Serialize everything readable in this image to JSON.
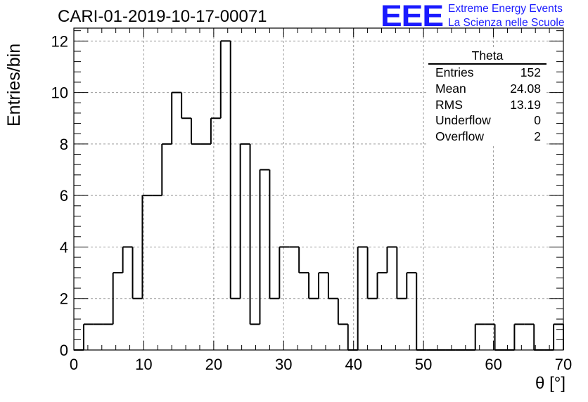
{
  "title": "CARI-01-2019-10-17-00071",
  "logo": {
    "mark": "EEE",
    "line1": "Extreme Energy Events",
    "line2": "La Scienza nelle Scuole"
  },
  "stats": {
    "name": "Theta",
    "rows": [
      {
        "label": "Entries",
        "value": "152"
      },
      {
        "label": "Mean",
        "value": "24.08"
      },
      {
        "label": "RMS",
        "value": "13.19"
      },
      {
        "label": "Underflow",
        "value": "0"
      },
      {
        "label": "Overflow",
        "value": "2"
      }
    ]
  },
  "chart_data": {
    "type": "histogram",
    "xlabel": "θ [°]",
    "ylabel": "Entries/bin",
    "xlim": [
      0,
      70
    ],
    "ylim": [
      0,
      12.5
    ],
    "grid": true,
    "x_ticks": [
      0,
      10,
      20,
      30,
      40,
      50,
      60,
      70
    ],
    "y_ticks": [
      0,
      2,
      4,
      6,
      8,
      10,
      12
    ],
    "bin_edges": [
      0,
      1.4,
      2.8,
      4.2,
      5.6,
      7.0,
      8.4,
      9.8,
      11.2,
      12.6,
      14.0,
      15.4,
      16.8,
      18.2,
      19.6,
      21.0,
      22.4,
      23.8,
      25.2,
      26.6,
      28.0,
      29.4,
      30.8,
      32.2,
      33.6,
      35.0,
      36.4,
      37.8,
      39.2,
      40.6,
      42.0,
      43.4,
      44.8,
      46.2,
      47.6,
      49.0,
      50.4,
      51.8,
      53.2,
      54.6,
      56.0,
      57.4,
      58.8,
      60.2,
      61.6,
      63.0,
      64.4,
      65.8,
      67.2,
      68.6,
      70.0
    ],
    "counts": [
      0,
      1,
      1,
      1,
      3,
      4,
      2,
      6,
      6,
      8,
      10,
      9,
      8,
      8,
      9,
      12,
      2,
      8,
      1,
      7,
      2,
      4,
      4,
      3,
      2,
      3,
      2,
      1,
      0,
      4,
      2,
      3,
      4,
      2,
      3,
      0,
      0,
      0,
      0,
      0,
      0,
      1,
      1,
      0,
      0,
      1,
      1,
      0,
      0,
      1
    ]
  }
}
